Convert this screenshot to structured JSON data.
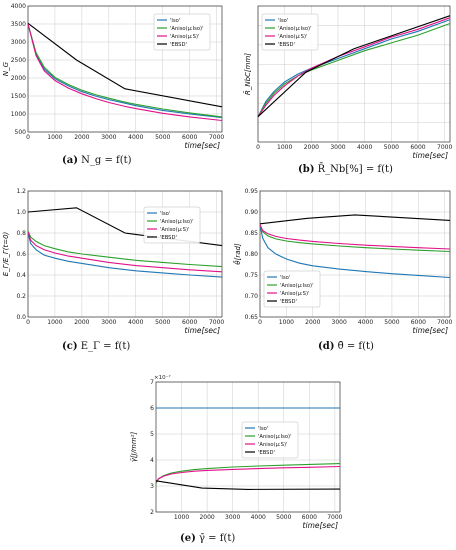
{
  "colors": {
    "iso": "#1f77b4",
    "aniso_iso": "#2ca02c",
    "aniso_s": "#e0128a",
    "ebsd": "#000000",
    "grid": "#cccccc"
  },
  "figures": [
    {
      "tag": "(a)",
      "caption": "N_g = f(t)"
    },
    {
      "tag": "(b)",
      "caption": "R̄_Nb[%] = f(t)"
    },
    {
      "tag": "(c)",
      "caption": "E_Γ = f(t)"
    },
    {
      "tag": "(d)",
      "caption": "θ̄ = f(t)"
    },
    {
      "tag": "(e)",
      "caption": "γ̄ = f(t)"
    }
  ],
  "chart_data": [
    {
      "type": "line",
      "id": "a",
      "ylabel": "N_G",
      "xlabel": "time[sec]",
      "xlim": [
        0,
        7200
      ],
      "ylim": [
        500,
        4000
      ],
      "xticks": [
        0,
        1000,
        2000,
        3000,
        4000,
        5000,
        6000,
        7000
      ],
      "yticks": [
        500,
        1000,
        1500,
        2000,
        2500,
        3000,
        3500,
        4000
      ],
      "legend": "top-right",
      "series": [
        {
          "name": "'Iso'",
          "color": "iso",
          "x": [
            0,
            300,
            600,
            1000,
            1500,
            2000,
            2500,
            3000,
            3600,
            4000,
            5000,
            6000,
            7200
          ],
          "y": [
            3500,
            2650,
            2250,
            1980,
            1780,
            1620,
            1500,
            1400,
            1300,
            1230,
            1100,
            1000,
            900
          ]
        },
        {
          "name": "'Aniso(μ:Iso)'",
          "color": "aniso_iso",
          "x": [
            0,
            300,
            600,
            1000,
            1500,
            2000,
            2500,
            3000,
            3600,
            4000,
            5000,
            6000,
            7200
          ],
          "y": [
            3500,
            2700,
            2300,
            2020,
            1820,
            1660,
            1540,
            1440,
            1330,
            1270,
            1140,
            1030,
            920
          ]
        },
        {
          "name": "'Aniso(μ:S)'",
          "color": "aniso_s",
          "x": [
            0,
            300,
            600,
            1000,
            1500,
            2000,
            2500,
            3000,
            3600,
            4000,
            5000,
            6000,
            7200
          ],
          "y": [
            3500,
            2620,
            2200,
            1930,
            1720,
            1560,
            1430,
            1320,
            1210,
            1150,
            1020,
            920,
            820
          ]
        },
        {
          "name": "'EBSD'",
          "color": "ebsd",
          "x": [
            0,
            1800,
            3600,
            7200
          ],
          "y": [
            3520,
            2500,
            1700,
            1200
          ]
        }
      ]
    },
    {
      "type": "line",
      "id": "b",
      "ylabel": "R̄_NbC[mm]",
      "xlabel": "time[sec]",
      "xlim": [
        0,
        7200
      ],
      "ylim": [
        0.005,
        0.075
      ],
      "xticks": [
        0,
        1000,
        2000,
        3000,
        4000,
        5000,
        6000,
        7000
      ],
      "yticks": [],
      "legend": "top-left",
      "series": [
        {
          "name": "'Iso'",
          "color": "iso",
          "x": [
            0,
            300,
            600,
            1000,
            1500,
            2000,
            3000,
            4000,
            5000,
            6000,
            7200
          ],
          "y": [
            0.018,
            0.026,
            0.031,
            0.036,
            0.04,
            0.043,
            0.048,
            0.053,
            0.058,
            0.062,
            0.068
          ]
        },
        {
          "name": "'Aniso(μ:Iso)'",
          "color": "aniso_iso",
          "x": [
            0,
            300,
            600,
            1000,
            1500,
            2000,
            3000,
            4000,
            5000,
            6000,
            7200
          ],
          "y": [
            0.018,
            0.025,
            0.03,
            0.035,
            0.039,
            0.042,
            0.047,
            0.052,
            0.056,
            0.06,
            0.066
          ]
        },
        {
          "name": "'Aniso(μ:S)'",
          "color": "aniso_s",
          "x": [
            0,
            300,
            600,
            1000,
            1500,
            2000,
            3000,
            4000,
            5000,
            6000,
            7200
          ],
          "y": [
            0.018,
            0.024,
            0.029,
            0.034,
            0.039,
            0.043,
            0.049,
            0.054,
            0.059,
            0.063,
            0.069
          ]
        },
        {
          "name": "'EBSD'",
          "color": "ebsd",
          "x": [
            0,
            1800,
            3600,
            7200
          ],
          "y": [
            0.018,
            0.041,
            0.053,
            0.07
          ]
        }
      ]
    },
    {
      "type": "line",
      "id": "c",
      "ylabel": "E_Γ/E_Γ(t=0)",
      "xlabel": "time[sec]",
      "xlim": [
        0,
        7200
      ],
      "ylim": [
        0.0,
        1.2
      ],
      "xticks": [
        0,
        1000,
        2000,
        3000,
        4000,
        5000,
        6000,
        7000
      ],
      "yticks": [
        0.0,
        0.2,
        0.4,
        0.6,
        0.8,
        1.0,
        1.2
      ],
      "legend": "right",
      "series": [
        {
          "name": "'Iso'",
          "color": "iso",
          "x": [
            0,
            100,
            300,
            600,
            1000,
            1500,
            2000,
            3000,
            4000,
            5000,
            6000,
            7200
          ],
          "y": [
            0.8,
            0.7,
            0.64,
            0.59,
            0.56,
            0.53,
            0.51,
            0.47,
            0.44,
            0.42,
            0.4,
            0.38
          ]
        },
        {
          "name": "'Aniso(μ:Iso)'",
          "color": "aniso_iso",
          "x": [
            0,
            100,
            300,
            600,
            1000,
            1500,
            2000,
            3000,
            4000,
            5000,
            6000,
            7200
          ],
          "y": [
            0.82,
            0.76,
            0.72,
            0.68,
            0.65,
            0.62,
            0.6,
            0.57,
            0.54,
            0.52,
            0.5,
            0.48
          ]
        },
        {
          "name": "'Aniso(μ:S)'",
          "color": "aniso_s",
          "x": [
            0,
            100,
            300,
            600,
            1000,
            1500,
            2000,
            3000,
            4000,
            5000,
            6000,
            7200
          ],
          "y": [
            0.81,
            0.73,
            0.68,
            0.64,
            0.61,
            0.58,
            0.56,
            0.52,
            0.49,
            0.47,
            0.45,
            0.43
          ]
        },
        {
          "name": "'EBSD'",
          "color": "ebsd",
          "x": [
            0,
            1800,
            3600,
            7200
          ],
          "y": [
            1.0,
            1.04,
            0.8,
            0.68
          ]
        }
      ]
    },
    {
      "type": "line",
      "id": "d",
      "ylabel": "θ̄[rad]",
      "xlabel": "time[sec]",
      "xlim": [
        0,
        7200
      ],
      "ylim": [
        0.65,
        0.95
      ],
      "xticks": [
        0,
        1000,
        2000,
        3000,
        4000,
        5000,
        6000,
        7000
      ],
      "yticks": [
        0.65,
        0.7,
        0.75,
        0.8,
        0.85,
        0.9,
        0.95
      ],
      "legend": "bottom-left",
      "series": [
        {
          "name": "'Iso'",
          "color": "iso",
          "x": [
            0,
            100,
            300,
            600,
            1000,
            1500,
            2000,
            3000,
            4000,
            5000,
            6000,
            7200
          ],
          "y": [
            0.87,
            0.838,
            0.815,
            0.8,
            0.788,
            0.778,
            0.772,
            0.764,
            0.758,
            0.753,
            0.749,
            0.744
          ]
        },
        {
          "name": "'Aniso(μ:Iso)'",
          "color": "aniso_iso",
          "x": [
            0,
            100,
            300,
            600,
            1000,
            1500,
            2000,
            3000,
            4000,
            5000,
            6000,
            7200
          ],
          "y": [
            0.87,
            0.853,
            0.843,
            0.836,
            0.831,
            0.827,
            0.824,
            0.819,
            0.815,
            0.812,
            0.809,
            0.806
          ]
        },
        {
          "name": "'Aniso(μ:S)'",
          "color": "aniso_s",
          "x": [
            0,
            100,
            300,
            600,
            1000,
            1500,
            2000,
            3000,
            4000,
            5000,
            6000,
            7200
          ],
          "y": [
            0.87,
            0.856,
            0.848,
            0.842,
            0.837,
            0.833,
            0.83,
            0.825,
            0.821,
            0.818,
            0.815,
            0.812
          ]
        },
        {
          "name": "'EBSD'",
          "color": "ebsd",
          "x": [
            0,
            1800,
            3600,
            7200
          ],
          "y": [
            0.872,
            0.885,
            0.893,
            0.88
          ]
        }
      ]
    },
    {
      "type": "line",
      "id": "e",
      "ylabel": "γ̄[J/mm²]",
      "xlabel": "time[sec]",
      "yscale_label": "×10⁻⁷",
      "xlim": [
        0,
        7200
      ],
      "ylim": [
        2,
        7
      ],
      "xticks": [
        1000,
        2000,
        3000,
        4000,
        5000,
        6000,
        7000
      ],
      "yticks": [
        2,
        3,
        4,
        5,
        6,
        7
      ],
      "legend": "right",
      "series": [
        {
          "name": "'Iso'",
          "color": "iso",
          "x": [
            0,
            7200
          ],
          "y": [
            6.0,
            6.0
          ]
        },
        {
          "name": "'Aniso(μ:Iso)'",
          "color": "aniso_iso",
          "x": [
            0,
            100,
            300,
            600,
            1000,
            1500,
            2000,
            3000,
            4000,
            5000,
            6000,
            7200
          ],
          "y": [
            3.1,
            3.28,
            3.4,
            3.5,
            3.57,
            3.63,
            3.67,
            3.73,
            3.77,
            3.8,
            3.83,
            3.86
          ]
        },
        {
          "name": "'Aniso(μ:S)'",
          "color": "aniso_s",
          "x": [
            0,
            100,
            300,
            600,
            1000,
            1500,
            2000,
            3000,
            4000,
            5000,
            6000,
            7200
          ],
          "y": [
            3.15,
            3.28,
            3.38,
            3.46,
            3.52,
            3.57,
            3.6,
            3.64,
            3.67,
            3.7,
            3.72,
            3.75
          ]
        },
        {
          "name": "'EBSD'",
          "color": "ebsd",
          "x": [
            0,
            1800,
            3600,
            7200
          ],
          "y": [
            3.2,
            2.92,
            2.87,
            2.88
          ]
        }
      ]
    }
  ]
}
